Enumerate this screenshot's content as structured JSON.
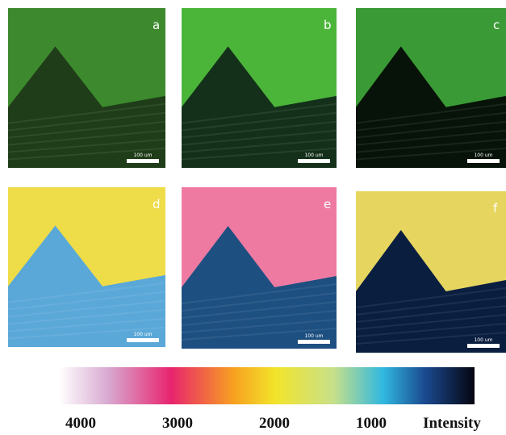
{
  "panels": [
    {
      "label": "a",
      "scale_bar": "100 um"
    },
    {
      "label": "b",
      "scale_bar": "100 um"
    },
    {
      "label": "c",
      "scale_bar": "100 um"
    },
    {
      "label": "d",
      "scale_bar": "100 um"
    },
    {
      "label": "e",
      "scale_bar": "100 um"
    },
    {
      "label": "f",
      "scale_bar": "100 um"
    }
  ],
  "colorbar": {
    "ticks": [
      4000,
      3000,
      2000,
      1000
    ],
    "title": "Intensity"
  }
}
